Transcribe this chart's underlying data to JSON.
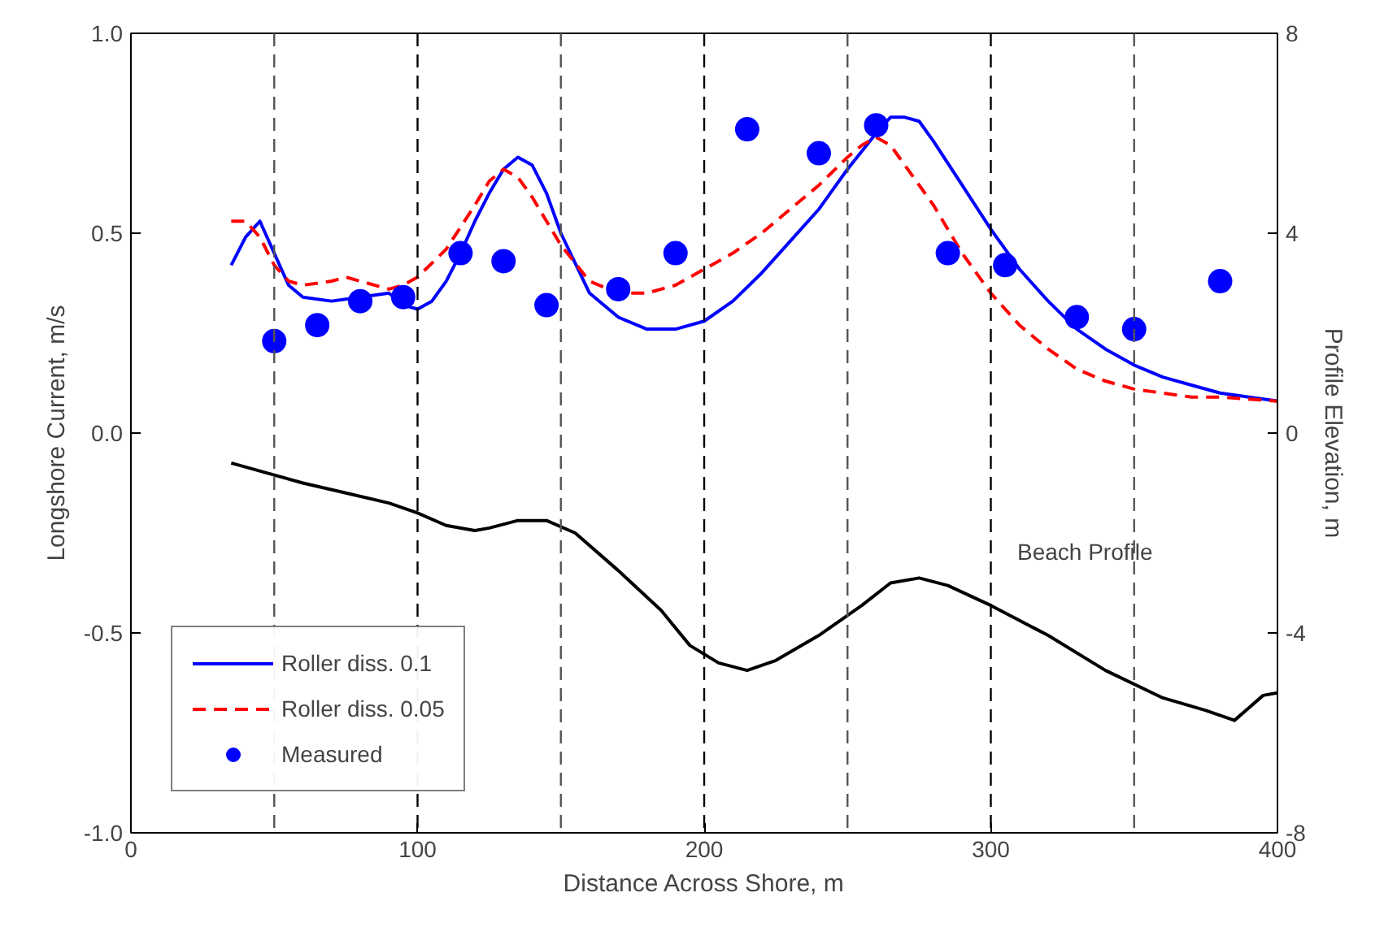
{
  "chart_data": {
    "type": "line",
    "xlabel": "Distance Across Shore, m",
    "ylabel": "Longshore Current, m/s",
    "y2label": "Profile Elevation, m",
    "xlim": [
      0,
      400
    ],
    "xticks": [
      0,
      100,
      200,
      300,
      400
    ],
    "ylim": [
      -1.0,
      1.0
    ],
    "yticks": [
      {
        "value": -1.0,
        "label": "-1.0"
      },
      {
        "value": -0.5,
        "label": "-0.5"
      },
      {
        "value": 0,
        "label": "0.0"
      },
      {
        "value": 0.5,
        "label": "0.5"
      },
      {
        "value": 1.0,
        "label": "1.0"
      }
    ],
    "y2lim": [
      -8,
      8
    ],
    "y2ticks": [
      -8,
      -4,
      0,
      4,
      8
    ],
    "grid": false,
    "legend": "bottom left",
    "ref_lines": [
      {
        "axis": "x",
        "value": 50,
        "label": null,
        "color": "#555555",
        "line_style": "dashed"
      },
      {
        "axis": "x",
        "value": 100,
        "label": null,
        "color": "#000000",
        "line_style": "dashed"
      },
      {
        "axis": "x",
        "value": 150,
        "label": null,
        "color": "#555555",
        "line_style": "dashed"
      },
      {
        "axis": "x",
        "value": 200,
        "label": null,
        "color": "#000000",
        "line_style": "dashed"
      },
      {
        "axis": "x",
        "value": 250,
        "label": null,
        "color": "#555555",
        "line_style": "dashed"
      },
      {
        "axis": "x",
        "value": 300,
        "label": null,
        "color": "#000000",
        "line_style": "dashed"
      },
      {
        "axis": "x",
        "value": 350,
        "label": null,
        "color": "#555555",
        "line_style": "dashed"
      }
    ],
    "annotations": [
      "Beach Profile"
    ],
    "series": [
      {
        "name": "Roller diss. 0.1",
        "type": "line",
        "line_style": "solid",
        "color": "#0000ff",
        "x": [
          35,
          40,
          45,
          50,
          55,
          60,
          70,
          80,
          90,
          95,
          100,
          105,
          110,
          115,
          120,
          125,
          130,
          135,
          140,
          145,
          150,
          160,
          170,
          180,
          190,
          200,
          210,
          220,
          230,
          240,
          250,
          260,
          265,
          270,
          275,
          280,
          290,
          300,
          310,
          320,
          330,
          340,
          350,
          360,
          370,
          380,
          390,
          400
        ],
        "values": [
          0.42,
          0.49,
          0.53,
          0.45,
          0.37,
          0.34,
          0.33,
          0.34,
          0.35,
          0.32,
          0.31,
          0.33,
          0.38,
          0.45,
          0.53,
          0.6,
          0.66,
          0.69,
          0.67,
          0.6,
          0.5,
          0.35,
          0.29,
          0.26,
          0.26,
          0.28,
          0.33,
          0.4,
          0.48,
          0.56,
          0.66,
          0.75,
          0.79,
          0.79,
          0.78,
          0.73,
          0.62,
          0.51,
          0.41,
          0.33,
          0.26,
          0.21,
          0.17,
          0.14,
          0.12,
          0.1,
          0.09,
          0.08
        ]
      },
      {
        "name": "Roller diss. 0.05",
        "type": "line",
        "line_style": "dashed",
        "color": "#ff0000",
        "x": [
          35,
          40,
          45,
          50,
          55,
          60,
          70,
          75,
          80,
          90,
          95,
          100,
          110,
          120,
          125,
          130,
          135,
          140,
          150,
          160,
          170,
          180,
          190,
          200,
          210,
          220,
          230,
          240,
          250,
          255,
          260,
          265,
          270,
          280,
          290,
          300,
          310,
          320,
          330,
          340,
          350,
          360,
          370,
          380,
          390,
          400
        ],
        "values": [
          0.53,
          0.53,
          0.49,
          0.42,
          0.38,
          0.37,
          0.38,
          0.39,
          0.38,
          0.36,
          0.37,
          0.39,
          0.46,
          0.57,
          0.63,
          0.66,
          0.64,
          0.59,
          0.47,
          0.38,
          0.35,
          0.35,
          0.37,
          0.41,
          0.45,
          0.5,
          0.56,
          0.62,
          0.69,
          0.72,
          0.74,
          0.72,
          0.67,
          0.57,
          0.45,
          0.35,
          0.27,
          0.21,
          0.16,
          0.13,
          0.11,
          0.1,
          0.09,
          0.09,
          0.085,
          0.08
        ]
      },
      {
        "name": "Measured",
        "type": "scatter",
        "marker": "circle",
        "color": "#0000ff",
        "x": [
          50,
          65,
          80,
          95,
          115,
          130,
          145,
          170,
          190,
          215,
          240,
          260,
          285,
          305,
          330,
          350,
          380
        ],
        "values": [
          0.23,
          0.27,
          0.33,
          0.34,
          0.45,
          0.43,
          0.32,
          0.36,
          0.45,
          0.76,
          0.7,
          0.77,
          0.45,
          0.42,
          0.29,
          0.26,
          0.38
        ]
      },
      {
        "axis": "y2",
        "line_style": "solid",
        "color": "#000000",
        "x": [
          35,
          50,
          60,
          75,
          90,
          100,
          110,
          120,
          125,
          135,
          145,
          155,
          170,
          185,
          195,
          205,
          215,
          225,
          240,
          255,
          265,
          275,
          285,
          300,
          320,
          340,
          360,
          375,
          385,
          390,
          395,
          400
        ],
        "values": [
          -0.6,
          -0.84,
          -1.0,
          -1.2,
          -1.4,
          -1.6,
          -1.85,
          -1.95,
          -1.9,
          -1.75,
          -1.75,
          -2.0,
          -2.75,
          -3.55,
          -4.25,
          -4.6,
          -4.75,
          -4.55,
          -4.05,
          -3.45,
          -3.0,
          -2.9,
          -3.05,
          -3.45,
          -4.05,
          -4.75,
          -5.3,
          -5.55,
          -5.75,
          -5.5,
          -5.25,
          -5.2
        ]
      }
    ]
  }
}
